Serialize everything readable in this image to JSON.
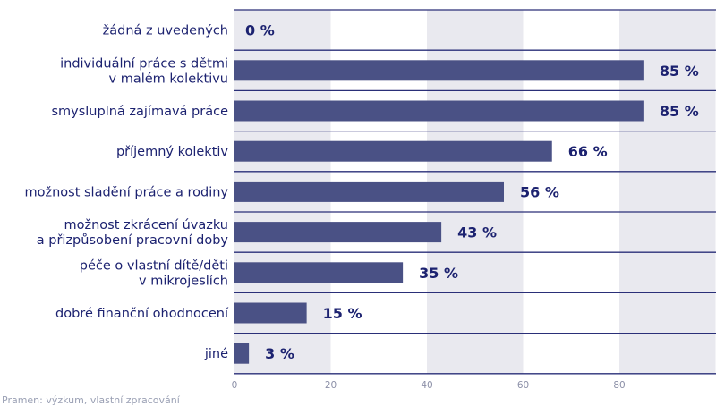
{
  "chart_data": {
    "type": "bar",
    "orientation": "horizontal",
    "categories": [
      [
        "žádná z uvedených"
      ],
      [
        "individuální práce s dětmi",
        "v malém kolektivu"
      ],
      [
        "smysluplná zajímavá práce"
      ],
      [
        "příjemný kolektiv"
      ],
      [
        "možnost sladění práce a rodiny"
      ],
      [
        "možnost zkrácení úvazku",
        "a přizpůsobení pracovní doby"
      ],
      [
        "péče o vlastní dítě/děti",
        "v mikrojeslích"
      ],
      [
        "dobré finanční ohodnocení"
      ],
      [
        "jiné"
      ]
    ],
    "values": [
      0,
      85,
      85,
      66,
      56,
      43,
      35,
      15,
      3
    ],
    "value_labels": [
      "0 %",
      "85 %",
      "85 %",
      "66 %",
      "56 %",
      "43 %",
      "35 %",
      "15 %",
      "3 %"
    ],
    "xticks": [
      0,
      20,
      40,
      60,
      80
    ],
    "xtick_labels": [
      "0",
      "20",
      "40",
      "60",
      "80"
    ],
    "xlim": [
      0,
      100
    ],
    "title": "",
    "xlabel": "",
    "ylabel": "",
    "grid": "alternating vertical bands",
    "colors": {
      "bar": "#4a5185",
      "band": "#e9e9ef",
      "divider": "#2a2f78",
      "text": "#1c2270",
      "tick": "#8c90a8"
    }
  },
  "source_note": "Pramen: výzkum, vlastní zpracování"
}
